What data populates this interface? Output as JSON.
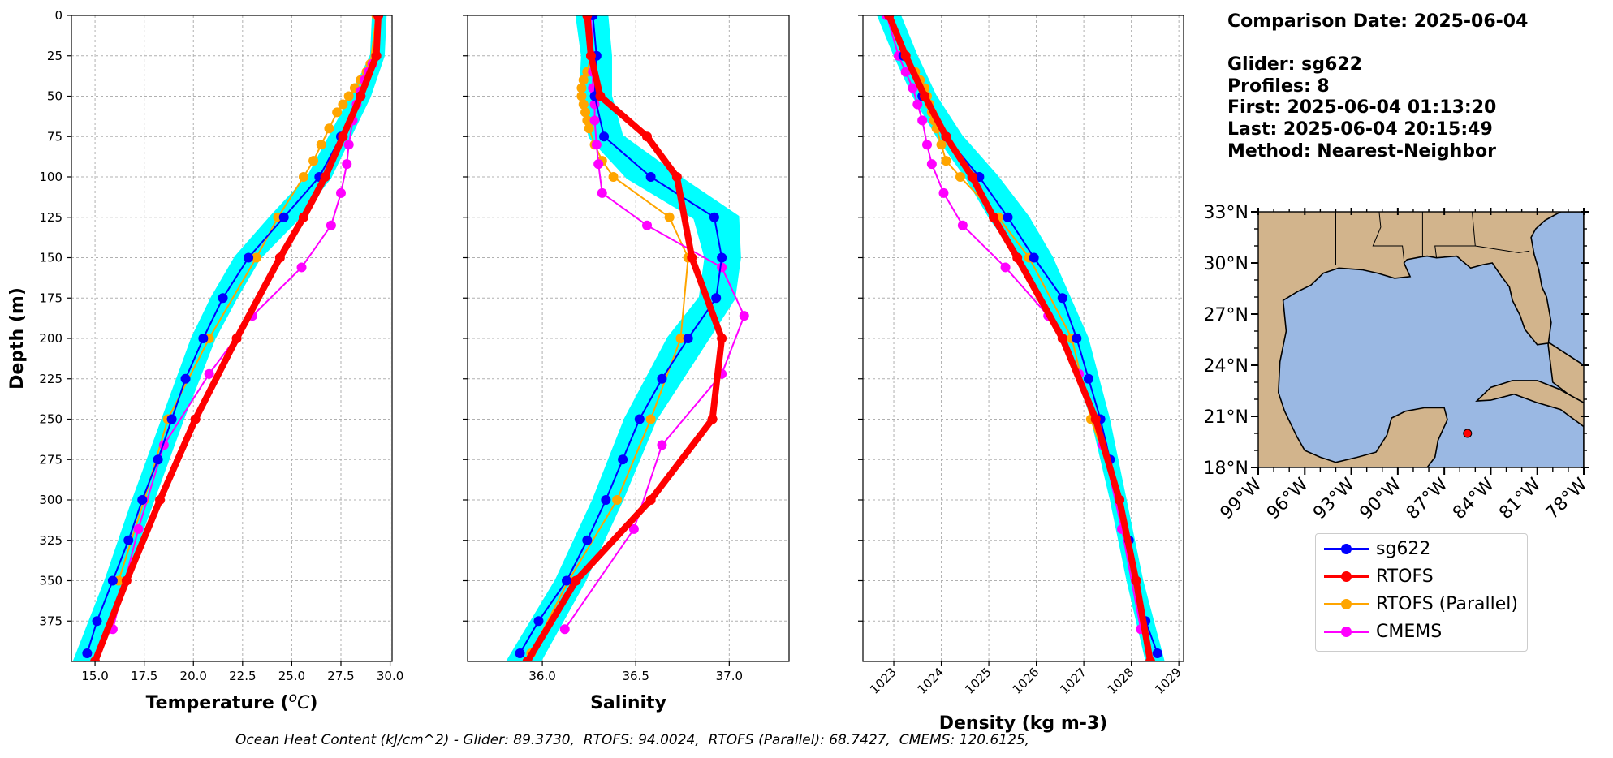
{
  "info": {
    "comparison_date": "Comparison Date: 2025-06-04",
    "glider": "Glider: sg622",
    "profiles": "Profiles: 8",
    "first": "First: 2025-06-04 01:13:20",
    "last": "Last: 2025-06-04 20:15:49",
    "method": "Method: Nearest-Neighbor"
  },
  "colors": {
    "glider": "#0000ff",
    "glider_envelope": "#00ffff",
    "rtofs": "#ff0000",
    "rtofs_parallel": "#ffa500",
    "cmems": "#ff00ff",
    "ocean": "#9ab8e3",
    "land": "#d2b48c"
  },
  "legend": [
    {
      "label": "sg622",
      "color": "#0000ff"
    },
    {
      "label": "RTOFS",
      "color": "#ff0000"
    },
    {
      "label": "RTOFS (Parallel)",
      "color": "#ffa500"
    },
    {
      "label": "CMEMS",
      "color": "#ff00ff"
    }
  ],
  "footer": "Ocean Heat Content (kJ/cm^2) - Glider: 89.3730,  RTOFS: 94.0024,  RTOFS (Parallel): 68.7427,  CMEMS: 120.6125,",
  "chart_data": [
    {
      "type": "line",
      "id": "temperature",
      "xlabel": "Temperature (°C)",
      "ylabel": "Depth (m)",
      "xlim": [
        13.8,
        30.1
      ],
      "ylim": [
        400,
        0
      ],
      "xticks": [
        15.0,
        17.5,
        20.0,
        22.5,
        25.0,
        27.5,
        30.0
      ],
      "xtick_labels": [
        "15.0",
        "17.5",
        "20.0",
        "22.5",
        "25.0",
        "27.5",
        "30.0"
      ],
      "yticks": [
        0,
        25,
        50,
        75,
        100,
        125,
        150,
        175,
        200,
        225,
        250,
        275,
        300,
        325,
        350,
        375
      ],
      "grid": true,
      "envelope": {
        "depth": [
          0,
          25,
          50,
          75,
          100,
          125,
          150,
          175,
          200,
          250,
          300,
          350,
          400
        ],
        "min": [
          29.2,
          29.1,
          28.1,
          27.0,
          25.9,
          24.0,
          22.2,
          21.0,
          20.0,
          18.5,
          17.0,
          15.6,
          14.0
        ],
        "max": [
          29.7,
          29.6,
          28.9,
          27.9,
          26.9,
          25.3,
          23.3,
          22.1,
          21.0,
          19.4,
          17.9,
          16.4,
          14.9
        ]
      },
      "series": [
        {
          "name": "sg622",
          "depth": [
            0,
            25,
            50,
            75,
            100,
            125,
            150,
            175,
            200,
            225,
            250,
            275,
            300,
            325,
            350,
            375,
            395
          ],
          "values": [
            29.4,
            29.3,
            28.5,
            27.5,
            26.4,
            24.6,
            22.8,
            21.5,
            20.5,
            19.6,
            18.9,
            18.2,
            17.4,
            16.7,
            15.9,
            15.1,
            14.6
          ]
        },
        {
          "name": "RTOFS",
          "depth": [
            0,
            25,
            50,
            75,
            100,
            125,
            150,
            200,
            250,
            300,
            350,
            400
          ],
          "values": [
            29.4,
            29.3,
            28.5,
            27.6,
            26.7,
            25.6,
            24.4,
            22.2,
            20.1,
            18.3,
            16.6,
            15.0
          ]
        },
        {
          "name": "RTOFS (Parallel)",
          "depth": [
            0,
            30,
            35,
            40,
            45,
            50,
            55,
            60,
            70,
            80,
            90,
            100,
            125,
            150,
            200,
            250,
            300,
            350
          ],
          "values": [
            29.3,
            29.0,
            28.8,
            28.5,
            28.2,
            27.9,
            27.6,
            27.3,
            26.9,
            26.5,
            26.1,
            25.6,
            24.3,
            23.2,
            20.8,
            18.7,
            17.5,
            16.2
          ]
        },
        {
          "name": "CMEMS",
          "depth": [
            0,
            25,
            30,
            35,
            40,
            47,
            55,
            65,
            80,
            92,
            110,
            130,
            156,
            186,
            222,
            266,
            318,
            380
          ],
          "values": [
            29.4,
            29.3,
            29.1,
            28.9,
            28.7,
            28.5,
            28.3,
            28.1,
            27.9,
            27.8,
            27.5,
            27.0,
            25.5,
            23.0,
            20.8,
            18.5,
            17.2,
            15.9
          ]
        }
      ]
    },
    {
      "type": "line",
      "id": "salinity",
      "xlabel": "Salinity",
      "xlim": [
        35.6,
        37.32
      ],
      "ylim": [
        400,
        0
      ],
      "xticks": [
        36.0,
        36.5,
        37.0
      ],
      "xtick_labels": [
        "36.0",
        "36.5",
        "37.0"
      ],
      "grid": true,
      "envelope": {
        "depth": [
          0,
          25,
          50,
          75,
          100,
          125,
          150,
          175,
          200,
          250,
          300,
          350,
          400
        ],
        "min": [
          36.19,
          36.22,
          36.21,
          36.26,
          36.46,
          36.82,
          36.88,
          36.85,
          36.68,
          36.45,
          36.28,
          36.08,
          35.82
        ],
        "max": [
          36.34,
          36.36,
          36.36,
          36.42,
          36.72,
          37.04,
          37.05,
          37.02,
          36.88,
          36.6,
          36.42,
          36.22,
          35.98
        ]
      },
      "series": [
        {
          "name": "sg622",
          "depth": [
            0,
            25,
            50,
            75,
            100,
            125,
            150,
            175,
            200,
            225,
            250,
            275,
            300,
            325,
            350,
            375,
            395
          ],
          "values": [
            36.27,
            36.29,
            36.28,
            36.33,
            36.58,
            36.92,
            36.96,
            36.93,
            36.78,
            36.64,
            36.52,
            36.43,
            36.34,
            36.24,
            36.13,
            35.98,
            35.88
          ]
        },
        {
          "name": "RTOFS",
          "depth": [
            0,
            25,
            50,
            75,
            100,
            150,
            200,
            250,
            300,
            350,
            400
          ],
          "values": [
            36.24,
            36.26,
            36.31,
            36.56,
            36.72,
            36.8,
            36.96,
            36.91,
            36.58,
            36.18,
            35.92
          ]
        },
        {
          "name": "RTOFS (Parallel)",
          "depth": [
            0,
            25,
            35,
            40,
            45,
            50,
            55,
            60,
            65,
            70,
            80,
            90,
            100,
            125,
            150,
            200,
            250,
            300,
            350,
            395
          ],
          "values": [
            36.25,
            36.26,
            36.24,
            36.22,
            36.21,
            36.21,
            36.22,
            36.23,
            36.24,
            36.25,
            36.28,
            36.32,
            36.38,
            36.68,
            36.78,
            36.74,
            36.58,
            36.4,
            36.14,
            35.94
          ]
        },
        {
          "name": "CMEMS",
          "depth": [
            0,
            25,
            35,
            45,
            55,
            65,
            80,
            92,
            110,
            130,
            156,
            186,
            222,
            266,
            318,
            380
          ],
          "values": [
            36.26,
            36.27,
            36.27,
            36.27,
            36.28,
            36.28,
            36.29,
            36.3,
            36.32,
            36.56,
            36.96,
            37.08,
            36.96,
            36.64,
            36.49,
            36.12
          ]
        }
      ]
    },
    {
      "type": "line",
      "id": "density",
      "xlabel": "Density (kg m-3)",
      "xlim": [
        1022.35,
        1029.1
      ],
      "ylim": [
        400,
        0
      ],
      "xticks": [
        1023,
        1024,
        1025,
        1026,
        1027,
        1028,
        1029
      ],
      "xtick_labels": [
        "1023",
        "1024",
        "1025",
        "1026",
        "1027",
        "1028",
        "1029"
      ],
      "grid": true,
      "envelope": {
        "depth": [
          0,
          25,
          50,
          75,
          100,
          125,
          150,
          200,
          250,
          300,
          350,
          400
        ],
        "min": [
          1022.7,
          1023.05,
          1023.45,
          1023.95,
          1024.55,
          1025.05,
          1025.65,
          1026.65,
          1027.2,
          1027.6,
          1027.95,
          1028.35
        ],
        "max": [
          1023.1,
          1023.45,
          1023.85,
          1024.4,
          1025.15,
          1025.8,
          1026.3,
          1027.05,
          1027.5,
          1027.85,
          1028.2,
          1028.65
        ]
      },
      "series": [
        {
          "name": "sg622",
          "depth": [
            0,
            25,
            50,
            75,
            100,
            125,
            150,
            175,
            200,
            225,
            250,
            275,
            300,
            325,
            350,
            375,
            395
          ],
          "values": [
            1022.9,
            1023.2,
            1023.6,
            1024.1,
            1024.8,
            1025.4,
            1025.95,
            1026.55,
            1026.85,
            1027.1,
            1027.35,
            1027.55,
            1027.75,
            1027.95,
            1028.1,
            1028.3,
            1028.55
          ]
        },
        {
          "name": "RTOFS",
          "depth": [
            0,
            25,
            50,
            75,
            100,
            125,
            150,
            200,
            250,
            300,
            350,
            400
          ],
          "values": [
            1022.9,
            1023.25,
            1023.65,
            1024.1,
            1024.65,
            1025.1,
            1025.6,
            1026.55,
            1027.25,
            1027.75,
            1028.1,
            1028.4
          ]
        },
        {
          "name": "RTOFS (Parallel)",
          "depth": [
            0,
            25,
            35,
            40,
            45,
            50,
            55,
            60,
            65,
            70,
            80,
            90,
            100,
            125,
            150,
            200,
            250,
            300,
            350
          ],
          "values": [
            1022.9,
            1023.25,
            1023.45,
            1023.55,
            1023.65,
            1023.7,
            1023.75,
            1023.8,
            1023.85,
            1023.9,
            1024.0,
            1024.1,
            1024.4,
            1025.2,
            1025.85,
            1026.75,
            1027.15,
            1027.75,
            1028.1
          ]
        },
        {
          "name": "CMEMS",
          "depth": [
            0,
            25,
            35,
            45,
            55,
            65,
            80,
            92,
            110,
            130,
            156,
            186,
            222,
            266,
            318,
            380
          ],
          "values": [
            1022.85,
            1023.1,
            1023.25,
            1023.4,
            1023.5,
            1023.6,
            1023.7,
            1023.8,
            1024.05,
            1024.45,
            1025.35,
            1026.25,
            1026.9,
            1027.4,
            1027.8,
            1028.2
          ]
        }
      ]
    },
    {
      "type": "map",
      "id": "location-map",
      "xlim": [
        -99,
        -78
      ],
      "ylim": [
        18,
        33
      ],
      "xtick_labels": [
        "99°W",
        "96°W",
        "93°W",
        "90°W",
        "87°W",
        "84°W",
        "81°W",
        "78°W"
      ],
      "xticks": [
        -99,
        -96,
        -93,
        -90,
        -87,
        -84,
        -81,
        -78
      ],
      "ytick_labels": [
        "33°N",
        "30°N",
        "27°N",
        "24°N",
        "21°N",
        "18°N"
      ],
      "yticks": [
        33,
        30,
        27,
        24,
        21,
        18
      ],
      "glider_location": {
        "lon": -85.5,
        "lat": 20.0
      }
    }
  ]
}
